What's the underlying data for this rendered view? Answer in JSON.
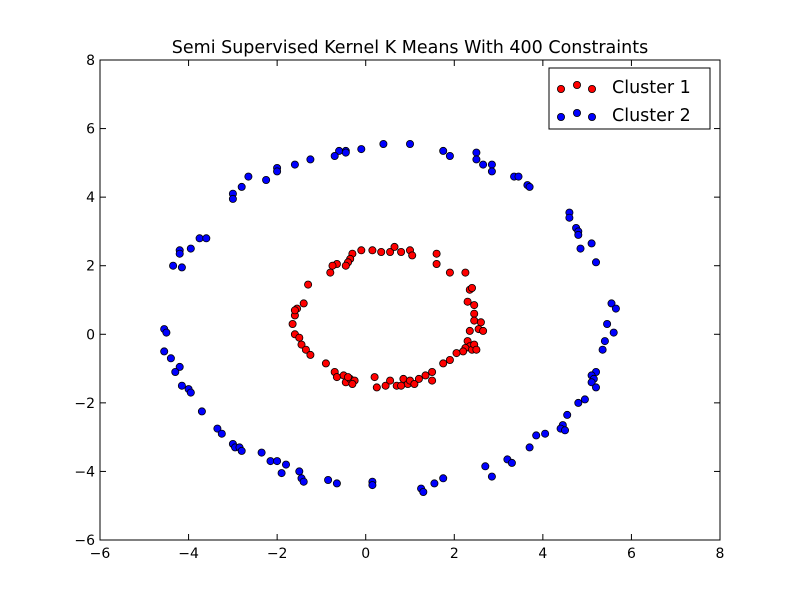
{
  "chart_data": {
    "type": "scatter",
    "title": "Semi Supervised Kernel K Means With 400 Constraints",
    "xlabel": "",
    "ylabel": "",
    "xlim": [
      -6,
      8
    ],
    "ylim": [
      -6,
      8
    ],
    "xticks": [
      -6,
      -4,
      -2,
      0,
      2,
      4,
      6,
      8
    ],
    "yticks": [
      -6,
      -4,
      -2,
      0,
      2,
      4,
      6,
      8
    ],
    "xtick_labels": [
      "−6",
      "−4",
      "−2",
      "0",
      "2",
      "4",
      "6",
      "8"
    ],
    "ytick_labels": [
      "−6",
      "−4",
      "−2",
      "0",
      "2",
      "4",
      "6",
      "8"
    ],
    "grid": false,
    "legend_position": "top-right",
    "series": [
      {
        "name": "Cluster 1",
        "color": "#ff0000",
        "points": [
          [
            -0.1,
            2.45
          ],
          [
            0.15,
            2.45
          ],
          [
            0.35,
            2.4
          ],
          [
            0.55,
            2.4
          ],
          [
            0.65,
            2.55
          ],
          [
            0.8,
            2.4
          ],
          [
            1.0,
            2.45
          ],
          [
            1.05,
            2.3
          ],
          [
            1.6,
            2.35
          ],
          [
            1.6,
            2.05
          ],
          [
            -0.3,
            2.35
          ],
          [
            -0.35,
            2.2
          ],
          [
            -0.4,
            2.1
          ],
          [
            -0.45,
            2.0
          ],
          [
            -0.65,
            2.05
          ],
          [
            -0.75,
            2.0
          ],
          [
            -0.8,
            1.8
          ],
          [
            1.9,
            1.8
          ],
          [
            2.25,
            1.8
          ],
          [
            2.35,
            1.3
          ],
          [
            2.4,
            1.35
          ],
          [
            2.3,
            0.95
          ],
          [
            2.45,
            0.85
          ],
          [
            2.45,
            0.6
          ],
          [
            2.45,
            0.4
          ],
          [
            2.6,
            0.35
          ],
          [
            2.55,
            0.15
          ],
          [
            2.65,
            0.1
          ],
          [
            2.35,
            0.1
          ],
          [
            -1.3,
            1.45
          ],
          [
            -1.4,
            0.9
          ],
          [
            -1.55,
            0.75
          ],
          [
            -1.6,
            0.55
          ],
          [
            -1.65,
            0.3
          ],
          [
            -1.6,
            0.7
          ],
          [
            -1.6,
            0.0
          ],
          [
            -1.5,
            -0.1
          ],
          [
            -1.45,
            -0.3
          ],
          [
            -1.35,
            -0.45
          ],
          [
            -1.25,
            -0.6
          ],
          [
            2.3,
            -0.2
          ],
          [
            2.35,
            -0.35
          ],
          [
            2.25,
            -0.4
          ],
          [
            2.4,
            -0.45
          ],
          [
            2.2,
            -0.5
          ],
          [
            2.05,
            -0.55
          ],
          [
            1.9,
            -0.75
          ],
          [
            1.75,
            -0.85
          ],
          [
            2.45,
            -0.3
          ],
          [
            2.5,
            -0.45
          ],
          [
            -0.9,
            -0.85
          ],
          [
            -0.7,
            -1.1
          ],
          [
            -0.65,
            -1.25
          ],
          [
            -0.5,
            -1.2
          ],
          [
            -0.45,
            -1.4
          ],
          [
            -0.35,
            -1.3
          ],
          [
            -0.25,
            -1.35
          ],
          [
            -0.3,
            -1.45
          ],
          [
            0.2,
            -1.25
          ],
          [
            0.25,
            -1.55
          ],
          [
            0.45,
            -1.5
          ],
          [
            0.55,
            -1.35
          ],
          [
            0.7,
            -1.5
          ],
          [
            0.85,
            -1.3
          ],
          [
            0.95,
            -1.45
          ],
          [
            1.0,
            -1.35
          ],
          [
            1.1,
            -1.45
          ],
          [
            1.2,
            -1.3
          ],
          [
            1.35,
            -1.2
          ],
          [
            1.5,
            -1.1
          ],
          [
            1.5,
            -1.35
          ],
          [
            0.8,
            -1.5
          ],
          [
            -0.4,
            -1.25
          ]
        ]
      },
      {
        "name": "Cluster 2",
        "color": "#0000ff",
        "points": [
          [
            -0.6,
            5.35
          ],
          [
            -0.45,
            5.35
          ],
          [
            -0.45,
            5.3
          ],
          [
            -0.7,
            5.2
          ],
          [
            -0.1,
            5.4
          ],
          [
            0.4,
            5.55
          ],
          [
            1.0,
            5.55
          ],
          [
            1.75,
            5.35
          ],
          [
            1.9,
            5.2
          ],
          [
            2.5,
            5.3
          ],
          [
            2.5,
            5.1
          ],
          [
            2.65,
            4.95
          ],
          [
            2.85,
            4.95
          ],
          [
            2.85,
            4.75
          ],
          [
            -1.25,
            5.1
          ],
          [
            -1.6,
            4.95
          ],
          [
            -2.0,
            4.85
          ],
          [
            -2.0,
            4.75
          ],
          [
            -2.25,
            4.5
          ],
          [
            -2.65,
            4.6
          ],
          [
            -2.8,
            4.3
          ],
          [
            -3.0,
            4.1
          ],
          [
            -3.0,
            3.95
          ],
          [
            3.35,
            4.6
          ],
          [
            3.45,
            4.6
          ],
          [
            3.65,
            4.35
          ],
          [
            3.7,
            4.3
          ],
          [
            4.6,
            3.55
          ],
          [
            4.6,
            3.4
          ],
          [
            4.75,
            3.1
          ],
          [
            4.8,
            3.0
          ],
          [
            4.8,
            2.9
          ],
          [
            5.1,
            2.65
          ],
          [
            4.85,
            2.5
          ],
          [
            5.2,
            2.1
          ],
          [
            -3.75,
            2.8
          ],
          [
            -3.6,
            2.8
          ],
          [
            -3.95,
            2.5
          ],
          [
            -4.2,
            2.45
          ],
          [
            -4.2,
            2.35
          ],
          [
            -4.35,
            2.0
          ],
          [
            -4.15,
            1.95
          ],
          [
            5.55,
            0.9
          ],
          [
            5.65,
            0.75
          ],
          [
            5.45,
            0.3
          ],
          [
            5.6,
            0.05
          ],
          [
            5.4,
            -0.2
          ],
          [
            5.35,
            -0.45
          ],
          [
            -4.55,
            0.15
          ],
          [
            -4.5,
            0.05
          ],
          [
            -4.55,
            -0.5
          ],
          [
            -4.4,
            -0.7
          ],
          [
            -4.2,
            -0.95
          ],
          [
            -4.3,
            -1.1
          ],
          [
            -4.15,
            -1.5
          ],
          [
            -4.0,
            -1.6
          ],
          [
            -3.95,
            -1.7
          ],
          [
            -3.7,
            -2.25
          ],
          [
            5.2,
            -1.1
          ],
          [
            5.1,
            -1.2
          ],
          [
            5.15,
            -1.3
          ],
          [
            5.1,
            -1.4
          ],
          [
            5.2,
            -1.55
          ],
          [
            4.95,
            -1.9
          ],
          [
            4.8,
            -2.0
          ],
          [
            4.55,
            -2.35
          ],
          [
            4.45,
            -2.65
          ],
          [
            4.4,
            -2.75
          ],
          [
            4.5,
            -2.8
          ],
          [
            4.05,
            -2.9
          ],
          [
            3.85,
            -2.95
          ],
          [
            3.7,
            -3.3
          ],
          [
            -3.35,
            -2.75
          ],
          [
            -3.25,
            -2.9
          ],
          [
            -3.0,
            -3.2
          ],
          [
            -2.95,
            -3.3
          ],
          [
            -2.85,
            -3.3
          ],
          [
            -2.8,
            -3.4
          ],
          [
            -2.35,
            -3.45
          ],
          [
            -2.15,
            -3.7
          ],
          [
            -2.0,
            -3.7
          ],
          [
            -1.8,
            -3.8
          ],
          [
            -1.9,
            -4.05
          ],
          [
            -1.5,
            -4.0
          ],
          [
            -1.45,
            -4.2
          ],
          [
            -1.4,
            -4.3
          ],
          [
            3.2,
            -3.65
          ],
          [
            3.3,
            -3.75
          ],
          [
            2.7,
            -3.85
          ],
          [
            2.85,
            -4.15
          ],
          [
            1.75,
            -4.2
          ],
          [
            1.55,
            -4.35
          ],
          [
            1.25,
            -4.5
          ],
          [
            1.3,
            -4.6
          ],
          [
            0.15,
            -4.3
          ],
          [
            0.15,
            -4.4
          ],
          [
            -0.85,
            -4.25
          ],
          [
            -0.65,
            -4.35
          ]
        ]
      }
    ]
  }
}
